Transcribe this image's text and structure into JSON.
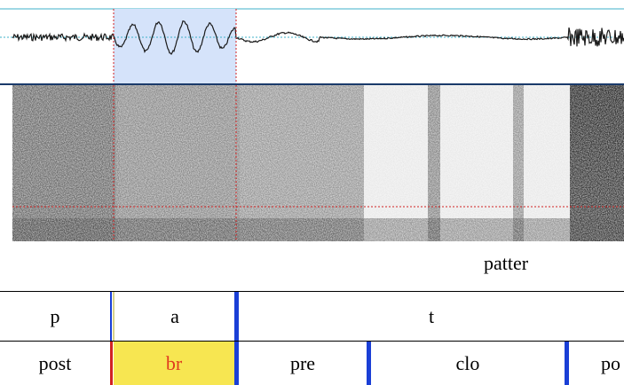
{
  "word_tier": {
    "word": "patter"
  },
  "phone_tier": {
    "items": [
      "p",
      "a",
      "t"
    ]
  },
  "subphone_tier": {
    "items": [
      "post",
      "br",
      "pre",
      "clo",
      "po"
    ],
    "selected_item": "br"
  },
  "colors": {
    "selection_fill": "#d5e3fa",
    "waveform_line": "#1a1a1a",
    "baseline": "#3fb0c8",
    "cursor_line": "#d22222",
    "boundary": "#1a3fd6",
    "selected_cell": "#f7e651",
    "selected_text": "#e03b1e"
  }
}
